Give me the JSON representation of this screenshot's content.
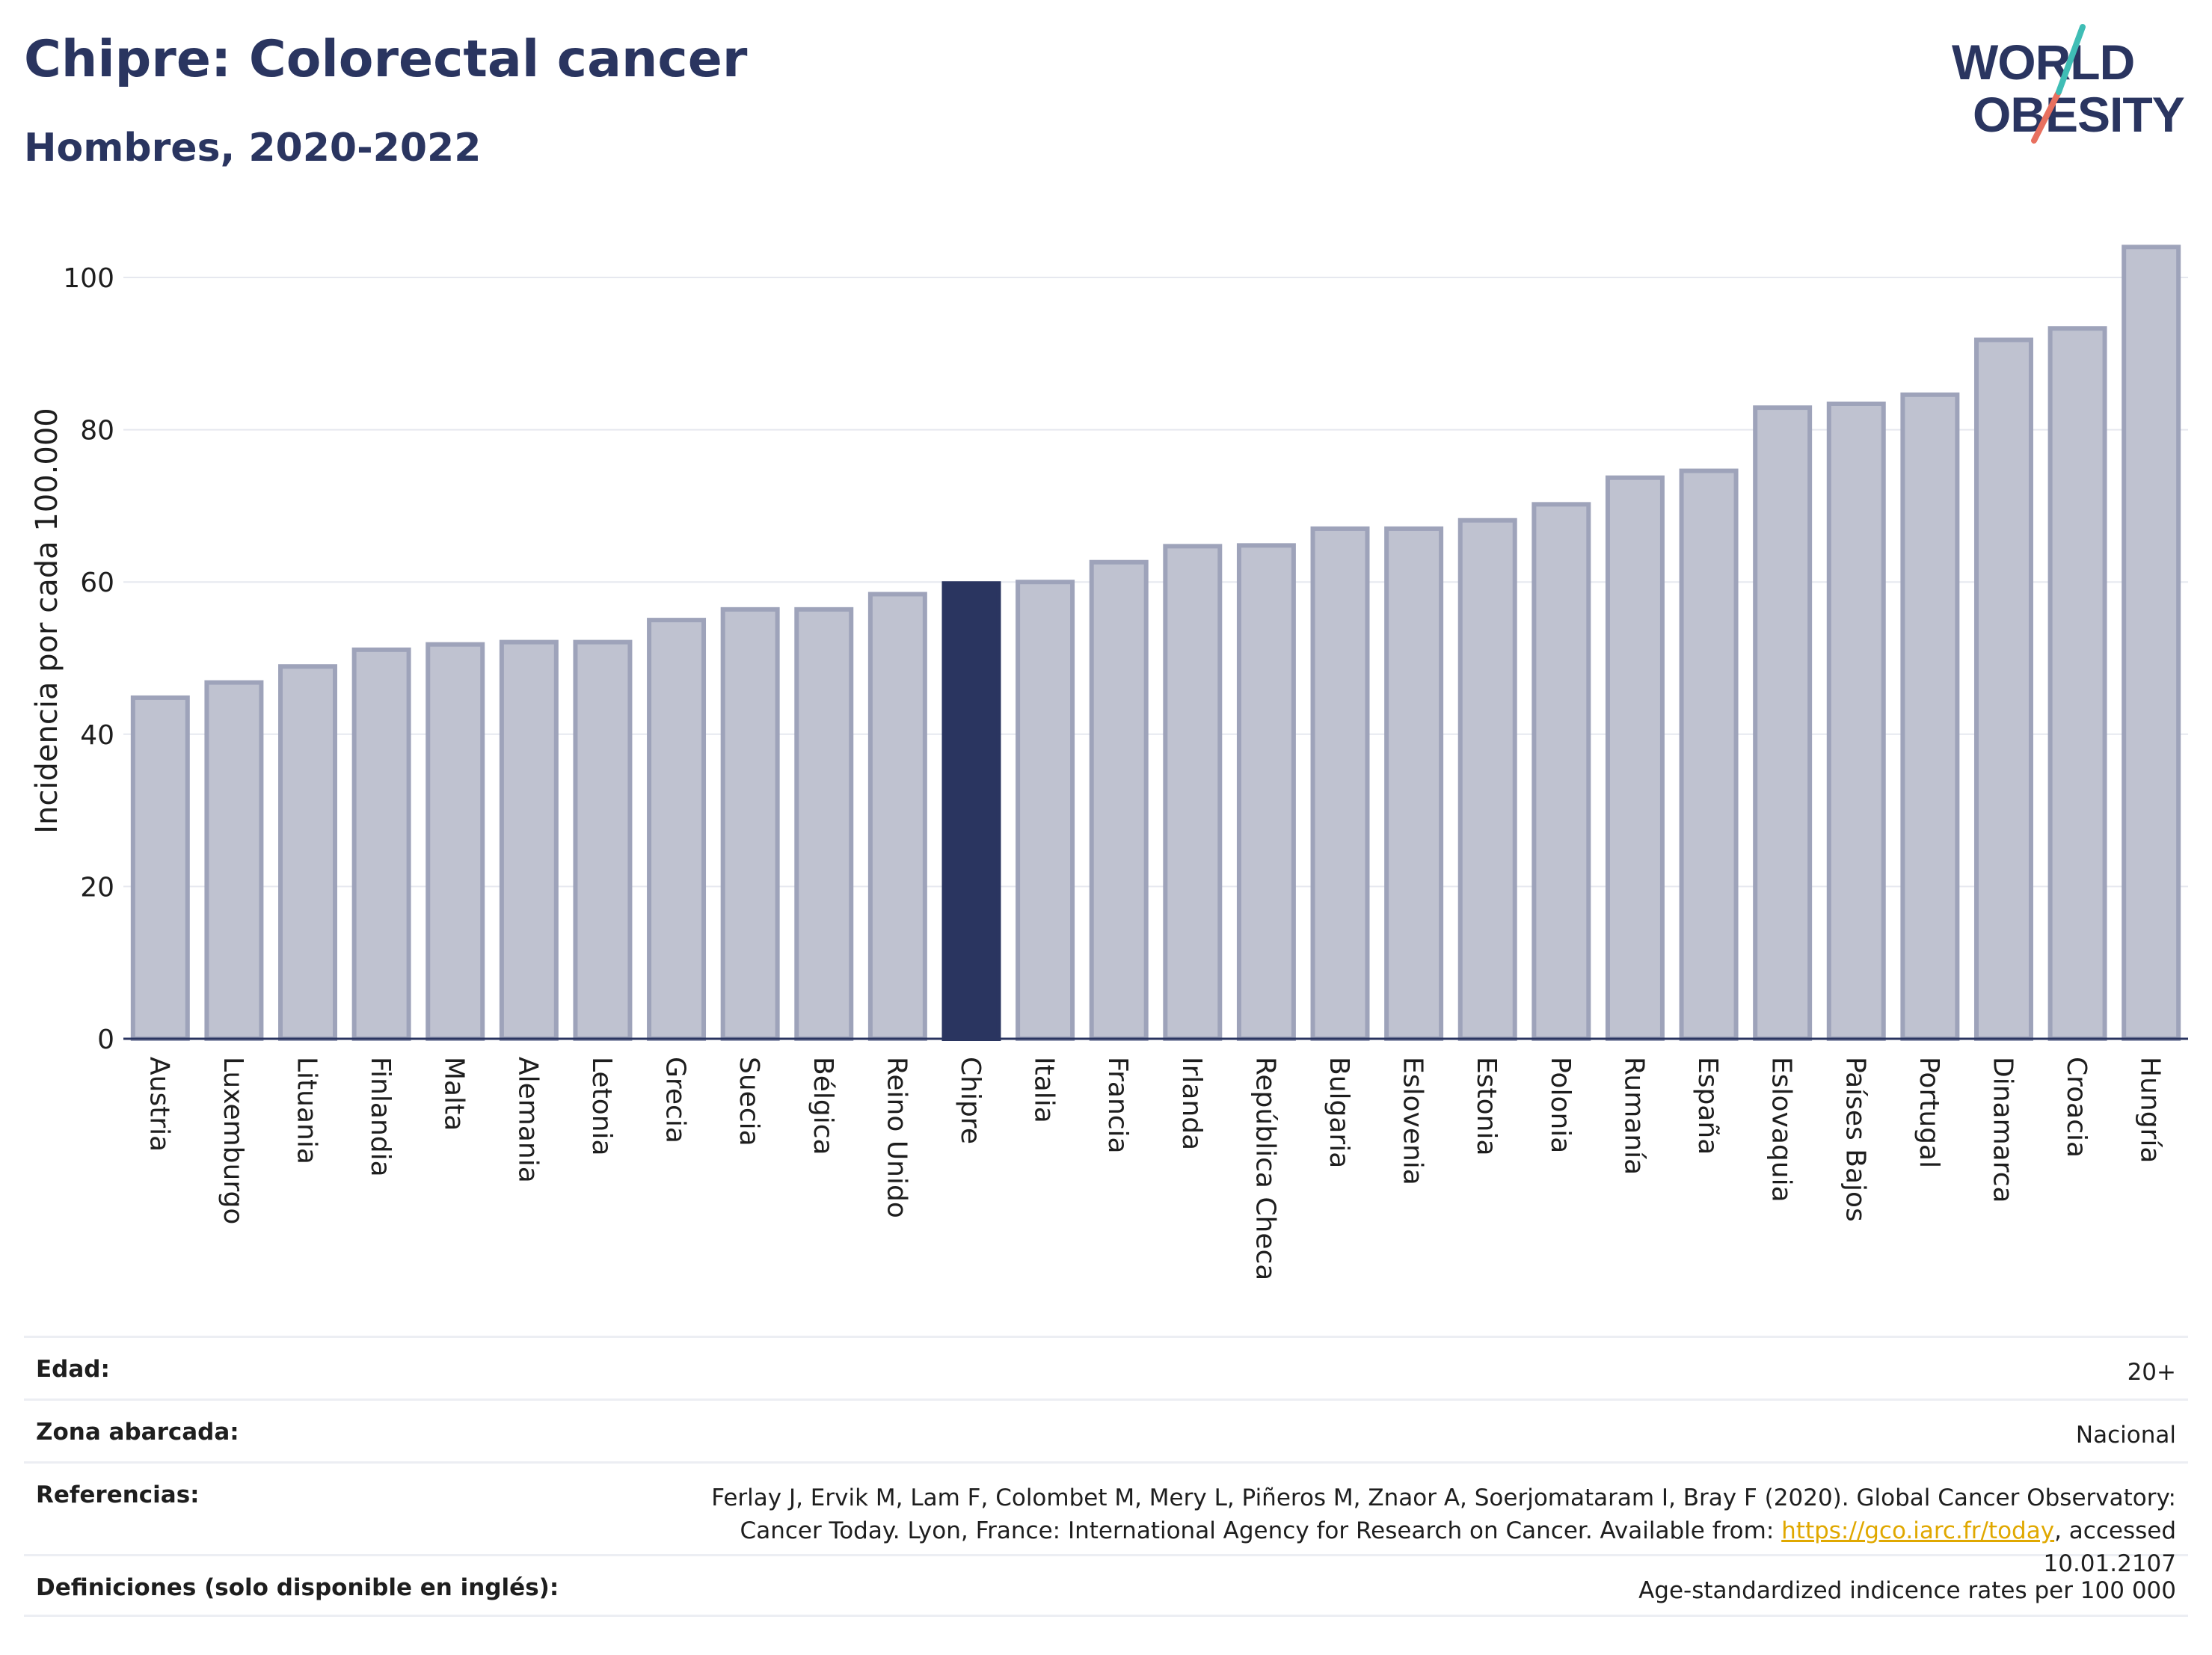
{
  "header": {
    "title": "Chipre: Colorectal cancer",
    "subtitle": "Hombres, 2020-2022"
  },
  "logo": {
    "line1": "WORLD",
    "line2": "OBESITY"
  },
  "colors": {
    "bar": "#bfc2d0",
    "bar_border": "#9ea3ba",
    "highlight": "#2a3560",
    "text": "#2a3560",
    "link": "#e0a800"
  },
  "chart_data": {
    "type": "bar",
    "ylabel": "Incidencia por cada 100.000",
    "ylim": [
      0,
      108
    ],
    "yticks": [
      0,
      20,
      40,
      60,
      80,
      100
    ],
    "grid": true,
    "highlight": "Chipre",
    "categories": [
      "Austria",
      "Luxemburgo",
      "Lituania",
      "Finlandia",
      "Malta",
      "Alemania",
      "Letonia",
      "Grecia",
      "Suecia",
      "Bélgica",
      "Reino Unido",
      "Chipre",
      "Italia",
      "Francia",
      "Irlanda",
      "República Checa",
      "Bulgaria",
      "Eslovenia",
      "Estonia",
      "Polonia",
      "Rumanía",
      "España",
      "Eslovaquia",
      "Países Bajos",
      "Portugal",
      "Dinamarca",
      "Croacia",
      "Hungría"
    ],
    "values": [
      44.8,
      46.8,
      48.9,
      51.1,
      51.8,
      52.1,
      52.1,
      55.0,
      56.4,
      56.4,
      58.4,
      59.8,
      60.0,
      62.6,
      64.7,
      64.8,
      67.0,
      67.0,
      68.1,
      70.2,
      73.7,
      74.6,
      82.9,
      83.4,
      84.6,
      91.8,
      93.3,
      104.0
    ]
  },
  "meta": {
    "rows": [
      {
        "label": "Edad:",
        "value": "20+"
      },
      {
        "label": "Zona abarcada:",
        "value": "Nacional"
      },
      {
        "label": "Referencias:",
        "value_pre": "Ferlay J, Ervik M, Lam F, Colombet M, Mery L, Piñeros M, Znaor A, Soerjomataram I, Bray F (2020). Global Cancer Observatory: Cancer Today. Lyon, France: International Agency for Research on Cancer. Available from: ",
        "link": "https://gco.iarc.fr/today",
        "value_post": ", accessed 10.01.2107"
      },
      {
        "label": "Definiciones (solo disponible en inglés):",
        "value": "Age-standardized indicence rates per 100 000"
      }
    ]
  }
}
